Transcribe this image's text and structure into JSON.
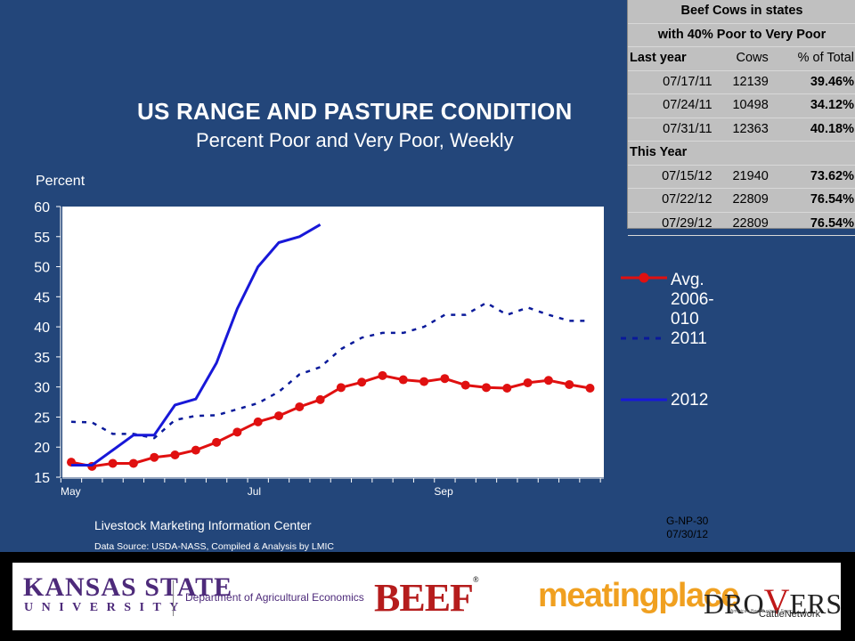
{
  "title": "US RANGE AND PASTURE CONDITION",
  "subtitle": "Percent Poor and Very Poor, Weekly",
  "source_org": "Livestock Marketing Information Center",
  "source_note": "Data Source:  USDA-NASS, Compiled & Analysis by LMIC",
  "chart_code": "G-NP-30",
  "chart_date": "07/30/12",
  "cow_table": {
    "title_line1": "Beef Cows in states",
    "title_line2": "with 40% Poor to Very Poor",
    "headers": [
      "Last year",
      "Cows",
      "% of Total"
    ],
    "last_year_rows": [
      [
        "07/17/11",
        "12139",
        "39.46%"
      ],
      [
        "07/24/11",
        "10498",
        "34.12%"
      ],
      [
        "07/31/11",
        "12363",
        "40.18%"
      ]
    ],
    "this_year_label": "This Year",
    "this_year_rows": [
      [
        "07/15/12",
        "21940",
        "73.62%"
      ],
      [
        "07/22/12",
        "22809",
        "76.54%"
      ],
      [
        "07/29/12",
        "22809",
        "76.54%"
      ]
    ]
  },
  "legend": {
    "avg": "Avg.\n2006-\n010",
    "y2011": "2011",
    "y2012": "2012"
  },
  "chart_data": {
    "type": "line",
    "ylabel": "Percent",
    "ylim": [
      15,
      60
    ],
    "yticks": [
      15,
      20,
      25,
      30,
      35,
      40,
      45,
      50,
      55,
      60
    ],
    "x_ticks": [
      {
        "label": "May",
        "week": 0
      },
      {
        "label": "Jul",
        "week": 9
      },
      {
        "label": "Sep",
        "week": 18
      }
    ],
    "x_range": [
      0,
      25
    ],
    "grid": false,
    "legend_position": "right",
    "series": [
      {
        "name": "Avg. 2006-010",
        "color": "#e01010",
        "style": "solid-markers",
        "x": [
          0,
          1,
          2,
          3,
          4,
          5,
          6,
          7,
          8,
          9,
          10,
          11,
          12,
          13,
          14,
          15,
          16,
          17,
          18,
          19,
          20,
          21,
          22,
          23,
          24,
          25
        ],
        "values": [
          17.5,
          16.8,
          17.3,
          17.3,
          18.3,
          18.7,
          19.5,
          20.8,
          22.5,
          24.2,
          25.2,
          26.7,
          27.9,
          29.9,
          30.8,
          31.9,
          31.2,
          30.9,
          31.4,
          30.3,
          29.9,
          29.8,
          30.7,
          31.1,
          30.4,
          29.8
        ]
      },
      {
        "name": "2011",
        "color": "#0a1a9a",
        "style": "dashed",
        "x": [
          0,
          1,
          2,
          3,
          4,
          5,
          6,
          7,
          8,
          9,
          10,
          11,
          12,
          13,
          14,
          15,
          16,
          17,
          18,
          19,
          20,
          21,
          22,
          23,
          24,
          25
        ],
        "values": [
          24.2,
          24.1,
          22.2,
          22.2,
          21.5,
          24.5,
          25.2,
          25.3,
          26.3,
          27.3,
          29.2,
          32.1,
          33.3,
          36.3,
          38.2,
          39,
          39,
          40,
          42,
          42,
          44,
          42,
          43.2,
          42,
          41,
          41
        ]
      },
      {
        "name": "2012",
        "color": "#1818d8",
        "style": "solid",
        "x": [
          0,
          1,
          2,
          3,
          4,
          5,
          6,
          7,
          8,
          9,
          10,
          11,
          12
        ],
        "values": [
          17,
          17,
          19.5,
          22,
          22,
          27,
          28,
          34,
          43,
          50,
          54,
          55,
          57
        ]
      }
    ]
  }
}
